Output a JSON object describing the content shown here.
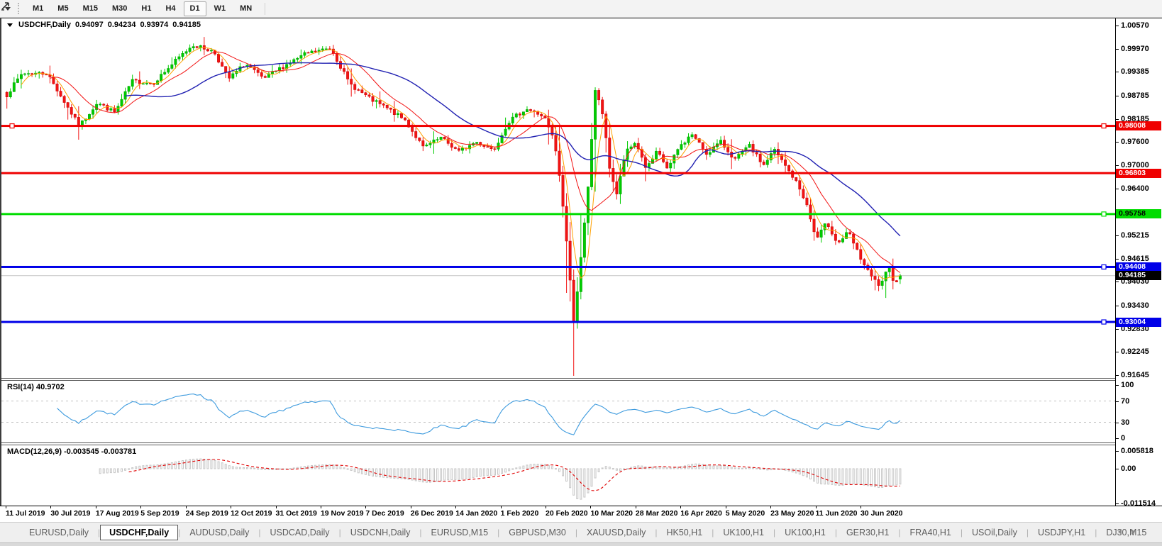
{
  "toolbar": {
    "timeframes": [
      "M1",
      "M5",
      "M15",
      "M30",
      "H1",
      "H4",
      "D1",
      "W1",
      "MN"
    ],
    "active_timeframe": "D1"
  },
  "chart": {
    "title": "USDCHF,Daily",
    "ohlc": {
      "open": "0.94097",
      "high": "0.94234",
      "low": "0.93974",
      "close": "0.94185"
    },
    "price_axis": {
      "ticks": [
        "1.00570",
        "0.99970",
        "0.99385",
        "0.98785",
        "0.98185",
        "0.97600",
        "0.97000",
        "0.96400",
        "0.95215",
        "0.94615",
        "0.94030",
        "0.93430",
        "0.92830",
        "0.92245",
        "0.91645"
      ]
    },
    "levels": [
      {
        "label": "0.98008",
        "price": 0.98008,
        "color": "#ef0000",
        "text_color": "#ffffff",
        "handles": [
          "left",
          "right"
        ]
      },
      {
        "label": "0.96803",
        "price": 0.96803,
        "color": "#ef0000",
        "text_color": "#ffffff",
        "handles": []
      },
      {
        "label": "0.95758",
        "price": 0.95758,
        "color": "#00dc00",
        "text_color": "#000000",
        "handles": [
          "right"
        ]
      },
      {
        "label": "0.94408",
        "price": 0.94408,
        "color": "#0000e8",
        "text_color": "#ffffff",
        "handles": [
          "right"
        ]
      },
      {
        "label": "0.93004",
        "price": 0.93004,
        "color": "#0000e8",
        "text_color": "#ffffff",
        "handles": [
          "right"
        ]
      }
    ],
    "current_price": {
      "label": "0.94185",
      "value": 0.94185,
      "line_color": "#c4c4c4",
      "badge_bg": "#000000",
      "badge_text": "#ffffff"
    }
  },
  "rsi": {
    "label": "RSI(14) 40.9702",
    "ticks": [
      "100",
      "70",
      "30",
      "0"
    ],
    "guide_levels": [
      70,
      30
    ],
    "line_color": "#3e9bde"
  },
  "macd": {
    "label": "MACD(12,26,9) -0.003545 -0.003781",
    "ticks": [
      "0.005818",
      "0.00",
      "-0.011514"
    ],
    "hist_color": "#c6c6c6",
    "signal_color": "#e00000"
  },
  "time_axis": {
    "labels": [
      "11 Jul 2019",
      "30 Jul 2019",
      "17 Aug 2019",
      "5 Sep 2019",
      "24 Sep 2019",
      "12 Oct 2019",
      "31 Oct 2019",
      "19 Nov 2019",
      "7 Dec 2019",
      "26 Dec 2019",
      "14 Jan 2020",
      "1 Feb 2020",
      "20 Feb 2020",
      "10 Mar 2020",
      "28 Mar 2020",
      "16 Apr 2020",
      "5 May 2020",
      "23 May 2020",
      "11 Jun 2020",
      "30 Jun 2020"
    ]
  },
  "tabs": {
    "separator": "|",
    "items": [
      {
        "label": "EURUSD,Daily",
        "active": false
      },
      {
        "label": "USDCHF,Daily",
        "active": true
      },
      {
        "label": "AUDUSD,Daily",
        "active": false
      },
      {
        "label": "USDCAD,Daily",
        "active": false
      },
      {
        "label": "USDCNH,Daily",
        "active": false
      },
      {
        "label": "EURUSD,M15",
        "active": false
      },
      {
        "label": "GBPUSD,M30",
        "active": false
      },
      {
        "label": "XAUUSD,Daily",
        "active": false
      },
      {
        "label": "HK50,H1",
        "active": false
      },
      {
        "label": "UK100,H1",
        "active": false
      },
      {
        "label": "UK100,H1",
        "active": false
      },
      {
        "label": "GER30,H1",
        "active": false
      },
      {
        "label": "FRA40,H1",
        "active": false
      },
      {
        "label": "USOil,Daily",
        "active": false
      },
      {
        "label": "USDJPY,H1",
        "active": false
      },
      {
        "label": "DJ30,M15",
        "active": false
      }
    ]
  },
  "chart_data": {
    "type": "candlestick",
    "symbol": "USDCHF",
    "timeframe": "Daily",
    "ylim": [
      0.91575,
      1.00751
    ],
    "x_start_label": "11 Jul 2019",
    "x_end_label": "30 Jun 2020",
    "num_candles": 250,
    "last_candle": {
      "open": 0.94097,
      "high": 0.94234,
      "low": 0.93974,
      "close": 0.94185
    },
    "crash_low": 0.9163,
    "close_anchors": [
      [
        0,
        0.988
      ],
      [
        0.017,
        0.9935
      ],
      [
        0.045,
        0.9935
      ],
      [
        0.081,
        0.98
      ],
      [
        0.101,
        0.986
      ],
      [
        0.121,
        0.9835
      ],
      [
        0.14,
        0.9915
      ],
      [
        0.164,
        0.991
      ],
      [
        0.188,
        0.9965
      ],
      [
        0.208,
        1.0008
      ],
      [
        0.232,
        0.999
      ],
      [
        0.248,
        0.992
      ],
      [
        0.267,
        0.996
      ],
      [
        0.287,
        0.992
      ],
      [
        0.311,
        0.9955
      ],
      [
        0.335,
        0.9985
      ],
      [
        0.363,
        1.0
      ],
      [
        0.383,
        0.991
      ],
      [
        0.406,
        0.987
      ],
      [
        0.426,
        0.9845
      ],
      [
        0.446,
        0.9815
      ],
      [
        0.466,
        0.9745
      ],
      [
        0.486,
        0.977
      ],
      [
        0.506,
        0.9735
      ],
      [
        0.525,
        0.976
      ],
      [
        0.545,
        0.974
      ],
      [
        0.561,
        0.981
      ],
      [
        0.581,
        0.9845
      ],
      [
        0.601,
        0.9825
      ],
      [
        0.613,
        0.976
      ],
      [
        0.621,
        0.963
      ],
      [
        0.629,
        0.945
      ],
      [
        0.635,
        0.929
      ],
      [
        0.643,
        0.948
      ],
      [
        0.651,
        0.965
      ],
      [
        0.659,
        0.99
      ],
      [
        0.667,
        0.983
      ],
      [
        0.675,
        0.969
      ],
      [
        0.683,
        0.9625
      ],
      [
        0.692,
        0.973
      ],
      [
        0.704,
        0.976
      ],
      [
        0.716,
        0.969
      ],
      [
        0.728,
        0.9735
      ],
      [
        0.74,
        0.969
      ],
      [
        0.752,
        0.9745
      ],
      [
        0.767,
        0.978
      ],
      [
        0.783,
        0.973
      ],
      [
        0.799,
        0.976
      ],
      [
        0.815,
        0.9715
      ],
      [
        0.831,
        0.975
      ],
      [
        0.847,
        0.97
      ],
      [
        0.859,
        0.974
      ],
      [
        0.871,
        0.97
      ],
      [
        0.883,
        0.966
      ],
      [
        0.894,
        0.961
      ],
      [
        0.906,
        0.951
      ],
      [
        0.918,
        0.9555
      ],
      [
        0.93,
        0.95
      ],
      [
        0.942,
        0.953
      ],
      [
        0.954,
        0.947
      ],
      [
        0.966,
        0.942
      ],
      [
        0.978,
        0.939
      ],
      [
        0.987,
        0.944
      ],
      [
        0.994,
        0.94
      ],
      [
        1,
        0.94185
      ]
    ],
    "up_color": "#00cc00",
    "up_border": "#00a000",
    "down_color": "#f21414",
    "down_border": "#c80000",
    "moving_averages": [
      {
        "period": 5,
        "color": "#ffa000",
        "width": 1
      },
      {
        "period": 13,
        "color": "#f21414",
        "width": 1
      },
      {
        "period": 34,
        "color": "#2121b2",
        "width": 1.4
      }
    ],
    "horizontal_levels": [
      0.98008,
      0.96803,
      0.95758,
      0.94408,
      0.93004
    ],
    "indicators": [
      {
        "name": "RSI",
        "period": 14,
        "value": 40.9702
      },
      {
        "name": "MACD",
        "fast": 12,
        "slow": 26,
        "signal": 9,
        "values": [
          -0.003545,
          -0.003781
        ]
      }
    ]
  }
}
